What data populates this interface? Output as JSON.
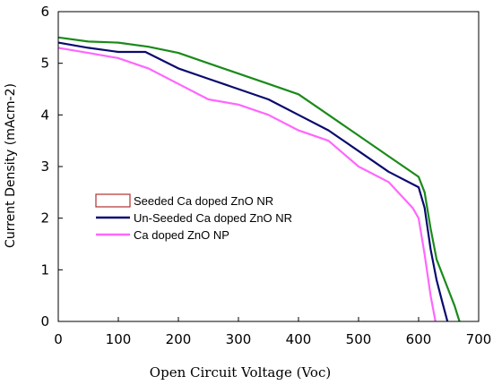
{
  "chart_data": {
    "type": "line",
    "title": "",
    "xlabel": "Open Circuit Voltage (Voc)",
    "ylabel": "Current Density (mAcm-2)",
    "xlim": [
      0,
      700
    ],
    "ylim": [
      0,
      6
    ],
    "xticks": [
      "0",
      "100",
      "200",
      "300",
      "400",
      "500",
      "600",
      "700"
    ],
    "yticks": [
      "0",
      "1",
      "2",
      "3",
      "4",
      "5",
      "6"
    ],
    "grid": false,
    "legend_placement": "center-left",
    "series": [
      {
        "name": "Seeded Ca doped  ZnO NR",
        "color": "#1a8a1a",
        "legend_swatch": "#b03030",
        "x": [
          0,
          50,
          100,
          150,
          200,
          250,
          300,
          350,
          400,
          450,
          500,
          550,
          600,
          610,
          620,
          630,
          640,
          650,
          660,
          668
        ],
        "y": [
          5.5,
          5.42,
          5.4,
          5.32,
          5.2,
          5.0,
          4.8,
          4.6,
          4.4,
          4.0,
          3.6,
          3.2,
          2.8,
          2.5,
          1.8,
          1.2,
          0.9,
          0.6,
          0.3,
          0.0
        ]
      },
      {
        "name": "Un-Seeded Ca doped  ZnO NR",
        "color": "#0a0a6e",
        "legend_swatch": "#0a0a6e",
        "x": [
          0,
          50,
          100,
          145,
          200,
          250,
          300,
          350,
          400,
          450,
          500,
          550,
          600,
          610,
          620,
          630,
          640,
          648
        ],
        "y": [
          5.4,
          5.3,
          5.22,
          5.22,
          4.9,
          4.7,
          4.5,
          4.3,
          4.0,
          3.7,
          3.3,
          2.9,
          2.6,
          2.2,
          1.4,
          0.8,
          0.35,
          0.0
        ]
      },
      {
        "name": "Ca doped  ZnO NP",
        "color": "#ff66ff",
        "legend_swatch": "#ff66ff",
        "x": [
          0,
          50,
          100,
          150,
          200,
          250,
          300,
          350,
          400,
          450,
          500,
          550,
          590,
          600,
          610,
          620,
          628
        ],
        "y": [
          5.3,
          5.2,
          5.1,
          4.9,
          4.6,
          4.3,
          4.2,
          4.0,
          3.7,
          3.5,
          3.0,
          2.7,
          2.2,
          2.0,
          1.3,
          0.5,
          0.0
        ]
      }
    ]
  }
}
